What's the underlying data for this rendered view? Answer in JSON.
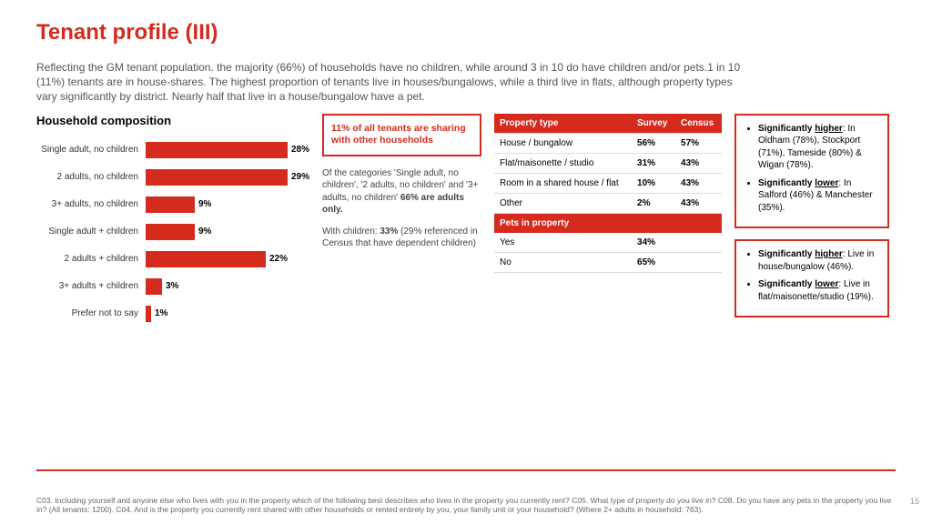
{
  "colors": {
    "accent": "#d52b1e",
    "text_body": "#555555",
    "text_dark": "#333333",
    "background": "#ffffff",
    "row_border": "#dddddd"
  },
  "page_number": "15",
  "title": "Tenant profile (III)",
  "intro": "Reflecting the GM tenant population. the majority (66%) of households have no children, while around 3 in 10 do have children and/or pets.1 in 10 (11%) tenants are in house-shares. The highest proportion of tenants live in houses/bungalows, while a third live in flats, although property types vary significantly by district. Nearly half that live in a house/bungalow have a pet.",
  "chart": {
    "heading": "Household composition",
    "type": "bar",
    "bar_color": "#d52b1e",
    "max_value": 30,
    "label_fontsize": 10,
    "value_fontsize": 10,
    "rows": [
      {
        "label": "Single adult, no children",
        "value": 28,
        "display": "28%"
      },
      {
        "label": "2 adults, no children",
        "value": 29,
        "display": "29%"
      },
      {
        "label": "3+ adults, no children",
        "value": 9,
        "display": "9%"
      },
      {
        "label": "Single adult + children",
        "value": 9,
        "display": "9%"
      },
      {
        "label": "2 adults + children",
        "value": 22,
        "display": "22%"
      },
      {
        "label": "3+ adults + children",
        "value": 3,
        "display": "3%"
      },
      {
        "label": "Prefer not to say",
        "value": 1,
        "display": "1%"
      }
    ]
  },
  "callout": "11% of all tenants are sharing with other households",
  "note1_a": "Of the categories 'Single adult, no children', '2 adults, no children' and '3+ adults, no children' ",
  "note1_b": "66% are adults only.",
  "note2_a": "With children: ",
  "note2_b": "33%",
  "note2_c": " (29% referenced in Census that have dependent children)",
  "table": {
    "header_bg": "#d52b1e",
    "cols": [
      "Property type",
      "Survey",
      "Census"
    ],
    "rows": [
      {
        "label": "House / bungalow",
        "survey": "56%",
        "census": "57%"
      },
      {
        "label": "Flat/maisonette / studio",
        "survey": "31%",
        "census": "43%"
      },
      {
        "label": "Room in a shared house / flat",
        "survey": "10%",
        "census": "43%"
      },
      {
        "label": "Other",
        "survey": "2%",
        "census": "43%"
      }
    ],
    "section2": "Pets in property",
    "rows2": [
      {
        "label": "Yes",
        "survey": "34%",
        "census": ""
      },
      {
        "label": "No",
        "survey": "65%",
        "census": ""
      }
    ]
  },
  "sidebox1": {
    "hi_label": "Significantly higher",
    "hi_text": ": In Oldham (78%), Stockport (71%), Tameside (80%) & Wigan (78%).",
    "lo_label": "Significantly lower",
    "lo_text": ": In Salford (46%) & Manchester (35%)."
  },
  "sidebox2": {
    "hi_label": "Significantly higher",
    "hi_text": ": Live in house/bungalow (46%).",
    "lo_label": "Significantly lower",
    "lo_text": ": Live in flat/maisonette/studio (19%)."
  },
  "footnote": "C03. Including yourself and anyone else who lives with you in the property which of the following best describes who lives in the property you currently rent? C05. What type of property do you live in? C08. Do you have any pets in the property you live in? (All tenants: 1200). C04. And is the property you currently rent shared with other households or rented entirely by you, your family unit or your household? (Where 2+ adults in household: 763)."
}
